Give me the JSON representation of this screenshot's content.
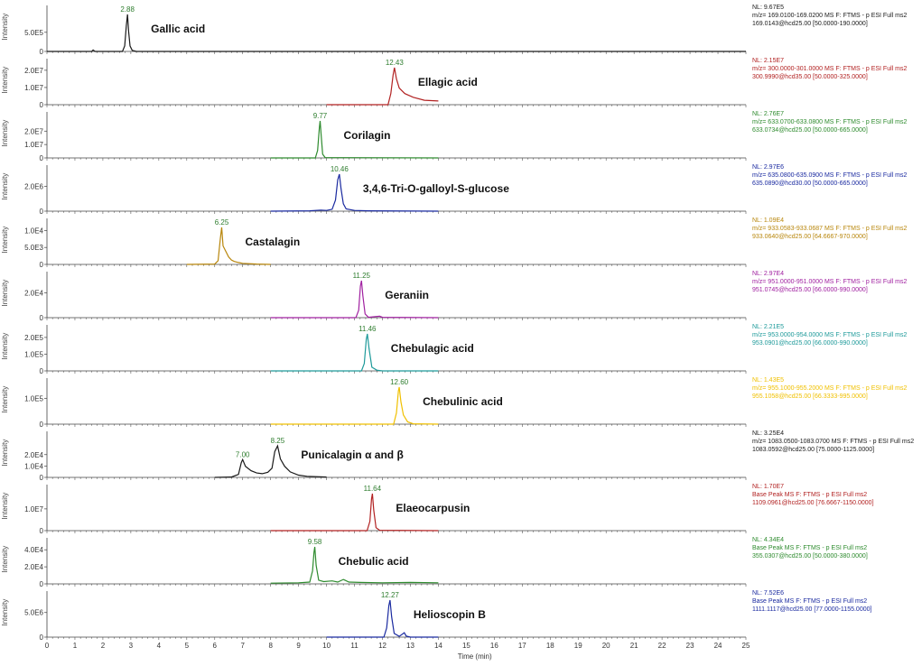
{
  "chart_data": {
    "type": "line",
    "title": "",
    "xlabel": "Time (min)",
    "ylabel": "Intensity",
    "xlim": [
      0,
      25
    ],
    "x_ticks": [
      0,
      1,
      2,
      3,
      4,
      5,
      6,
      7,
      8,
      9,
      10,
      11,
      12,
      13,
      14,
      15,
      16,
      17,
      18,
      19,
      20,
      21,
      22,
      23,
      24,
      25
    ],
    "panels": [
      {
        "compound": "Gallic acid",
        "color": "#1a1a1a",
        "peak_rt": 2.88,
        "peak_labels": [
          "2.88"
        ],
        "nl": "NL: 9.67E5",
        "filter": "m/z= 169.0100-169.0200 MS  F: FTMS - p ESI Full ms2",
        "scan": "169.0143@hcd25.00 [50.0000-190.0000]",
        "y_ticks": [
          "0",
          "5.0E5"
        ],
        "y_max": 967000.0,
        "x_range": [
          0,
          25
        ],
        "series": [
          [
            0,
            0
          ],
          [
            1.6,
            0
          ],
          [
            1.65,
            0.04
          ],
          [
            1.72,
            0
          ],
          [
            2.7,
            0
          ],
          [
            2.78,
            0.15
          ],
          [
            2.84,
            0.7
          ],
          [
            2.88,
            1.0
          ],
          [
            2.92,
            0.55
          ],
          [
            2.97,
            0.15
          ],
          [
            3.05,
            0.03
          ],
          [
            3.2,
            0
          ],
          [
            25,
            0
          ]
        ]
      },
      {
        "compound": "Ellagic  acid",
        "color": "#b22222",
        "peak_rt": 12.43,
        "peak_labels": [
          "12.43"
        ],
        "nl": "NL: 2.15E7",
        "filter": "m/z= 300.0000-301.0000 MS  F: FTMS - p ESI Full ms2",
        "scan": "300.9990@hcd35.00 [50.0000-325.0000]",
        "y_ticks": [
          "0",
          "1.0E7",
          "2.0E7"
        ],
        "y_max": 21500000.0,
        "x_range": [
          10,
          14
        ],
        "series": [
          [
            10,
            0
          ],
          [
            12.2,
            0
          ],
          [
            12.3,
            0.3
          ],
          [
            12.38,
            0.8
          ],
          [
            12.43,
            1.0
          ],
          [
            12.5,
            0.7
          ],
          [
            12.6,
            0.45
          ],
          [
            12.8,
            0.3
          ],
          [
            13.1,
            0.2
          ],
          [
            13.5,
            0.12
          ],
          [
            14,
            0.1
          ]
        ]
      },
      {
        "compound": "Corilagin",
        "color": "#2e8b2e",
        "peak_rt": 9.77,
        "peak_labels": [
          "9.77"
        ],
        "nl": "NL: 2.76E7",
        "filter": "m/z= 633.0700-633.0800 MS  F: FTMS - p ESI Full ms2",
        "scan": "633.0734@hcd25.00 [50.0000-665.0000]",
        "y_ticks": [
          "0",
          "1.0E7",
          "2.0E7"
        ],
        "y_max": 27600000.0,
        "x_range": [
          8,
          14
        ],
        "series": [
          [
            8,
            0
          ],
          [
            9.6,
            0
          ],
          [
            9.68,
            0.2
          ],
          [
            9.74,
            0.8
          ],
          [
            9.77,
            1.0
          ],
          [
            9.81,
            0.6
          ],
          [
            9.86,
            0.1
          ],
          [
            9.95,
            0.01
          ],
          [
            14,
            0
          ]
        ]
      },
      {
        "compound": "3,4,6-Tri-O-galloyl-S-glucose",
        "color": "#1a2aa0",
        "peak_rt": 10.46,
        "peak_labels": [
          "10.46"
        ],
        "nl": "NL: 2.97E6",
        "filter": "m/z= 635.0800-635.0900 MS  F: FTMS - p ESI Full ms2",
        "scan": "635.0890@hcd30.00 [50.0000-665.0000]",
        "y_ticks": [
          "0",
          "2.0E6"
        ],
        "y_max": 2970000.0,
        "x_range": [
          8,
          14
        ],
        "series": [
          [
            8,
            0
          ],
          [
            9.4,
            0.01
          ],
          [
            9.8,
            0.03
          ],
          [
            10.0,
            0.02
          ],
          [
            10.2,
            0.05
          ],
          [
            10.32,
            0.3
          ],
          [
            10.4,
            0.85
          ],
          [
            10.46,
            1.0
          ],
          [
            10.52,
            0.6
          ],
          [
            10.6,
            0.2
          ],
          [
            10.7,
            0.06
          ],
          [
            11.0,
            0.02
          ],
          [
            11.5,
            0.01
          ],
          [
            14,
            0
          ]
        ]
      },
      {
        "compound": "Castalagin",
        "color": "#b8860b",
        "peak_rt": 6.25,
        "peak_labels": [
          "6.25"
        ],
        "nl": "NL: 1.09E4",
        "filter": "m/z= 933.0583-933.0687 MS  F: FTMS - p ESI Full ms2",
        "scan": "933.0640@hcd25.00 [64.6667-970.0000]",
        "y_ticks": [
          "0",
          "5.0E3",
          "1.0E4"
        ],
        "y_max": 10900.0,
        "x_range": [
          5,
          8
        ],
        "series": [
          [
            5,
            0
          ],
          [
            6.0,
            0.01
          ],
          [
            6.12,
            0.1
          ],
          [
            6.2,
            0.7
          ],
          [
            6.25,
            1.0
          ],
          [
            6.3,
            0.5
          ],
          [
            6.4,
            0.35
          ],
          [
            6.5,
            0.2
          ],
          [
            6.6,
            0.12
          ],
          [
            6.7,
            0.08
          ],
          [
            6.85,
            0.05
          ],
          [
            7.0,
            0.03
          ],
          [
            7.5,
            0.01
          ],
          [
            8,
            0
          ]
        ]
      },
      {
        "compound": "Geraniin",
        "color": "#a020a0",
        "peak_rt": 11.25,
        "peak_labels": [
          "11.25"
        ],
        "nl": "NL: 2.97E4",
        "filter": "m/z= 951.0000-951.0000 MS  F: FTMS - p ESI Full ms2",
        "scan": "951.0745@hcd25.00 [66.0000-990.0000]",
        "y_ticks": [
          "0",
          "2.0E4"
        ],
        "y_max": 29700.0,
        "x_range": [
          8,
          14
        ],
        "series": [
          [
            8,
            0
          ],
          [
            11.05,
            0
          ],
          [
            11.15,
            0.2
          ],
          [
            11.21,
            0.85
          ],
          [
            11.25,
            1.0
          ],
          [
            11.3,
            0.6
          ],
          [
            11.38,
            0.1
          ],
          [
            11.5,
            0.01
          ],
          [
            11.9,
            0.04
          ],
          [
            12.0,
            0.01
          ],
          [
            14,
            0
          ]
        ]
      },
      {
        "compound": "Chebulagic acid",
        "color": "#1e9a9a",
        "peak_rt": 11.46,
        "peak_labels": [
          "11.46"
        ],
        "nl": "NL: 2.21E5",
        "filter": "m/z= 953.0000-954.0000 MS  F: FTMS - p ESI Full ms2",
        "scan": "953.0901@hcd25.00 [66.0000-990.0000]",
        "y_ticks": [
          "0",
          "1.0E5",
          "2.0E5"
        ],
        "y_max": 221000.0,
        "x_range": [
          8,
          14
        ],
        "series": [
          [
            8,
            0
          ],
          [
            11.25,
            0
          ],
          [
            11.35,
            0.2
          ],
          [
            11.42,
            0.85
          ],
          [
            11.46,
            1.0
          ],
          [
            11.52,
            0.6
          ],
          [
            11.62,
            0.1
          ],
          [
            11.8,
            0.02
          ],
          [
            12.0,
            0
          ],
          [
            14,
            0
          ]
        ]
      },
      {
        "compound": "Chebulinic acid",
        "color": "#f0c000",
        "peak_rt": 12.6,
        "peak_labels": [
          "12.60"
        ],
        "nl": "NL: 1.43E5",
        "filter": "m/z= 955.1000-955.2000 MS  F: FTMS - p ESI Full ms2",
        "scan": "955.1058@hcd25.00 [66.3333-995.0000]",
        "y_ticks": [
          "0",
          "1.0E5"
        ],
        "y_max": 143000.0,
        "x_range": [
          8,
          14
        ],
        "series": [
          [
            8,
            0
          ],
          [
            12.4,
            0
          ],
          [
            12.5,
            0.3
          ],
          [
            12.57,
            0.9
          ],
          [
            12.6,
            1.0
          ],
          [
            12.66,
            0.6
          ],
          [
            12.75,
            0.25
          ],
          [
            12.9,
            0.06
          ],
          [
            13.1,
            0.01
          ],
          [
            14,
            0
          ]
        ]
      },
      {
        "compound": "Punicalagin  α and  β",
        "color": "#1a1a1a",
        "peak_rt": 8.25,
        "peak_labels": [
          "7.00",
          "8.25"
        ],
        "nl": "NL: 3.25E4",
        "filter": "m/z= 1083.0500-1083.0700 MS  F: FTMS - p ESI Full ms2",
        "scan": "1083.0592@hcd25.00 [75.0000-1125.0000]",
        "y_ticks": [
          "0",
          "1.0E4",
          "2.0E4"
        ],
        "y_max": 32500.0,
        "x_range": [
          6,
          10
        ],
        "series": [
          [
            6,
            0
          ],
          [
            6.6,
            0.01
          ],
          [
            6.85,
            0.08
          ],
          [
            6.95,
            0.4
          ],
          [
            7.0,
            0.48
          ],
          [
            7.1,
            0.3
          ],
          [
            7.3,
            0.18
          ],
          [
            7.5,
            0.12
          ],
          [
            7.7,
            0.1
          ],
          [
            7.9,
            0.14
          ],
          [
            8.05,
            0.25
          ],
          [
            8.15,
            0.7
          ],
          [
            8.25,
            0.85
          ],
          [
            8.35,
            0.5
          ],
          [
            8.5,
            0.3
          ],
          [
            8.7,
            0.15
          ],
          [
            9.0,
            0.06
          ],
          [
            9.3,
            0.03
          ],
          [
            10,
            0.01
          ]
        ]
      },
      {
        "compound": "Elaeocarpusin",
        "color": "#b22222",
        "peak_rt": 11.64,
        "peak_labels": [
          "11.64"
        ],
        "nl": "NL: 1.70E7",
        "filter": "Base Peak MS  F: FTMS - p ESI Full ms2",
        "scan": "1109.0961@hcd25.00 [76.6667-1150.0000]",
        "y_ticks": [
          "0",
          "1.0E7"
        ],
        "y_max": 17000000.0,
        "x_range": [
          8,
          14
        ],
        "series": [
          [
            8,
            0
          ],
          [
            11.45,
            0
          ],
          [
            11.55,
            0.25
          ],
          [
            11.61,
            0.85
          ],
          [
            11.64,
            1.0
          ],
          [
            11.69,
            0.55
          ],
          [
            11.77,
            0.08
          ],
          [
            11.9,
            0.01
          ],
          [
            14,
            0
          ]
        ]
      },
      {
        "compound": "Chebulic acid",
        "color": "#2e8b2e",
        "peak_rt": 9.58,
        "peak_labels": [
          "9.58"
        ],
        "nl": "NL: 4.34E4",
        "filter": "Base Peak MS  F: FTMS - p ESI Full ms2",
        "scan": "355.0307@hcd25.00 [50.0000-380.0000]",
        "y_ticks": [
          "0",
          "2.0E4",
          "4.0E4"
        ],
        "y_max": 43400.0,
        "x_range": [
          8,
          14
        ],
        "series": [
          [
            8,
            0.02
          ],
          [
            9.0,
            0.03
          ],
          [
            9.4,
            0.05
          ],
          [
            9.5,
            0.35
          ],
          [
            9.55,
            0.85
          ],
          [
            9.58,
            1.0
          ],
          [
            9.63,
            0.5
          ],
          [
            9.72,
            0.1
          ],
          [
            9.9,
            0.06
          ],
          [
            10.2,
            0.08
          ],
          [
            10.4,
            0.05
          ],
          [
            10.6,
            0.12
          ],
          [
            10.8,
            0.05
          ],
          [
            11.2,
            0.04
          ],
          [
            12.0,
            0.03
          ],
          [
            13.0,
            0.04
          ],
          [
            14,
            0.03
          ]
        ]
      },
      {
        "compound": "Helioscopin  B",
        "color": "#1a2aa0",
        "peak_rt": 12.27,
        "peak_labels": [
          "12.27"
        ],
        "nl": "NL: 7.52E6",
        "filter": "Base Peak MS  F: FTMS - p ESI Full ms2",
        "scan": "1111.1117@hcd25.00 [77.0000-1155.0000]",
        "y_ticks": [
          "0",
          "5.0E6"
        ],
        "y_max": 7520000.0,
        "x_range": [
          10,
          14
        ],
        "series": [
          [
            10,
            0
          ],
          [
            12.05,
            0
          ],
          [
            12.15,
            0.25
          ],
          [
            12.23,
            0.85
          ],
          [
            12.27,
            1.0
          ],
          [
            12.33,
            0.55
          ],
          [
            12.42,
            0.1
          ],
          [
            12.6,
            0.02
          ],
          [
            12.78,
            0.12
          ],
          [
            12.85,
            0.03
          ],
          [
            13,
            0
          ],
          [
            14,
            0
          ]
        ]
      }
    ]
  }
}
